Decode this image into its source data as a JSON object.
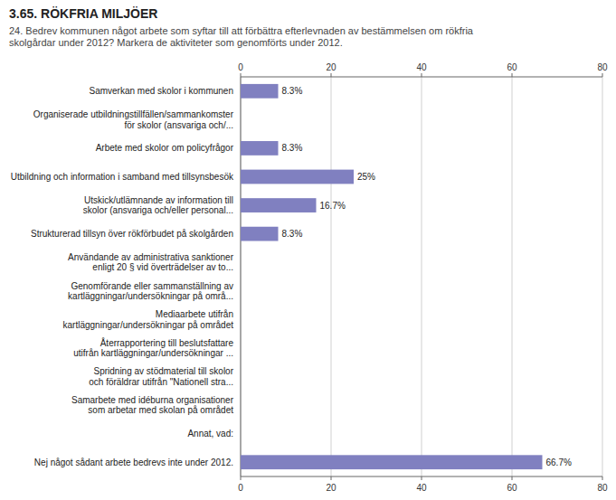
{
  "chart_data": {
    "type": "bar",
    "orientation": "horizontal",
    "title": "3.65. RÖKFRIA MILJÖER",
    "subtitle": "24. Bedrev kommunen något arbete som syftar till att förbättra efterlevnaden av bestämmelsen om rökfria\nskolgårdar under 2012? Markera de aktiviteter som genomförts under 2012.",
    "categories": [
      "Samverkan med skolor i kommunen",
      "Organiserade utbildningstillfällen/sammankomster\nför skolor (ansvariga och/...",
      "Arbete med skolor om policyfrågor",
      "Utbildning och information i samband med tillsynsbesök",
      "Utskick/utlämnande av information till\nskolor (ansvariga och/eller personal...",
      "Strukturerad tillsyn över rökförbudet på skolgården",
      "Användande av administrativa sanktioner\nenligt 20 § vid överträdelser av to...",
      "Genomförande eller sammanställning av\nkartläggningar/undersökningar på områ...",
      "Mediaarbete utifrån\nkartläggningar/undersökningar på området",
      "Återrapportering till beslutsfattare\nutifrån kartläggningar/undersökningar ...",
      "Spridning av stödmaterial till skolor\noch föräldrar utifrån \"Nationell stra...",
      "Samarbete med idéburna organisationer\nsom arbetar med skolan på området",
      "Annat, vad:",
      "Nej något sådant arbete bedrevs inte under 2012."
    ],
    "values": [
      8.3,
      0,
      8.3,
      25,
      16.7,
      8.3,
      0,
      0,
      0,
      0,
      0,
      0,
      0,
      66.7
    ],
    "value_labels": [
      "8.3%",
      null,
      "8.3%",
      "25%",
      "16.7%",
      "8.3%",
      null,
      null,
      null,
      null,
      null,
      null,
      null,
      "66.7%"
    ],
    "data_labels": true,
    "color": "#8080c0",
    "xlim": [
      0,
      80
    ],
    "xticks": [
      0,
      20,
      40,
      60,
      80
    ],
    "grid": true
  }
}
